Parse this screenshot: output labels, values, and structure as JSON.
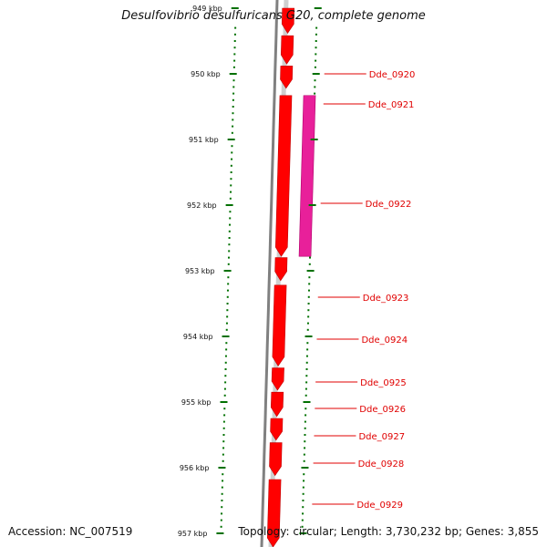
{
  "title": "Desulfovibrio desulfuricans G20, complete genome",
  "footer": {
    "accession": "Accession: NC_007519",
    "topology": "Topology: circular; Length: 3,730,232 bp; Genes: 3,855"
  },
  "colors": {
    "gene_forward": "#ff0000",
    "gene_highlight": "#e8209a",
    "backbone": "#808080",
    "tick": "#007000",
    "label": "#e00000"
  },
  "ticks": [
    "949 kbp",
    "950 kbp",
    "951 kbp",
    "952 kbp",
    "953 kbp",
    "954 kbp",
    "955 kbp",
    "956 kbp",
    "957 kbp"
  ],
  "genes": [
    {
      "label": "",
      "start_kbp": 949.0,
      "end_kbp": 949.38,
      "strand": "+"
    },
    {
      "label": "Dde_0920",
      "start_kbp": 949.42,
      "end_kbp": 949.85,
      "strand": "+"
    },
    {
      "label": "Dde_0921",
      "start_kbp": 949.88,
      "end_kbp": 950.22,
      "strand": "+"
    },
    {
      "label": "Dde_0922",
      "start_kbp": 950.33,
      "end_kbp": 952.78,
      "strand": "+"
    },
    {
      "label": "Dde_0923",
      "start_kbp": 952.8,
      "end_kbp": 953.15,
      "strand": "+"
    },
    {
      "label": "Dde_0924",
      "start_kbp": 953.22,
      "end_kbp": 954.45,
      "strand": "+"
    },
    {
      "label": "Dde_0925",
      "start_kbp": 954.48,
      "end_kbp": 954.82,
      "strand": "+"
    },
    {
      "label": "Dde_0926",
      "start_kbp": 954.85,
      "end_kbp": 955.22,
      "strand": "+"
    },
    {
      "label": "Dde_0927",
      "start_kbp": 955.25,
      "end_kbp": 955.58,
      "strand": "+"
    },
    {
      "label": "Dde_0928",
      "start_kbp": 955.62,
      "end_kbp": 956.12,
      "strand": "+"
    },
    {
      "label": "Dde_0929",
      "start_kbp": 956.18,
      "end_kbp": 957.5,
      "strand": "+"
    }
  ],
  "highlight_feature": {
    "start_kbp": 950.33,
    "end_kbp": 952.78
  }
}
